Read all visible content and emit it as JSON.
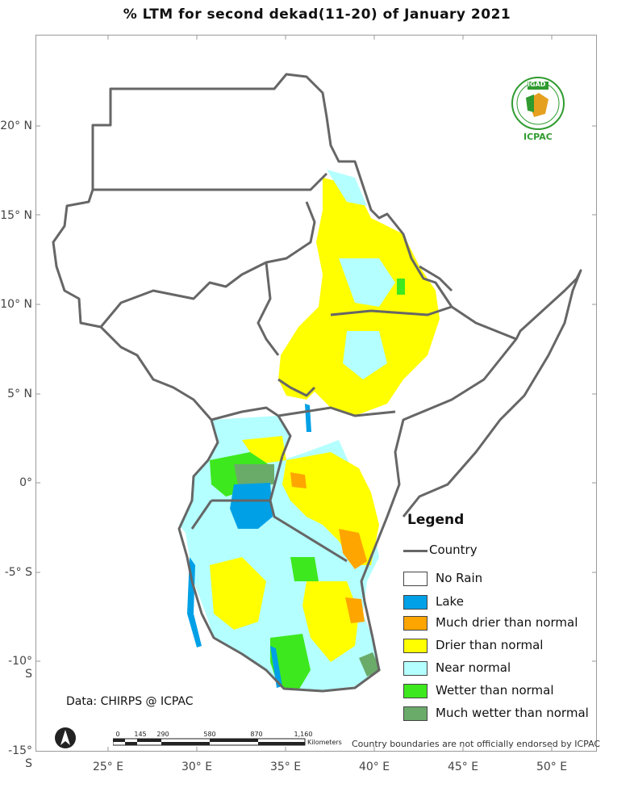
{
  "title": "% LTM for  second dekad(11-20) of January 2021",
  "lat_labels": [
    {
      "text": "20° N"
    },
    {
      "text": "15° N"
    },
    {
      "text": "10° N"
    },
    {
      "text": "5° N"
    },
    {
      "text": "0°"
    },
    {
      "text": "-5° S"
    },
    {
      "text": "-10° S"
    },
    {
      "text": "-15° S"
    }
  ],
  "lon_labels": [
    {
      "text": "25° E"
    },
    {
      "text": "30° E"
    },
    {
      "text": "35° E"
    },
    {
      "text": "40° E"
    },
    {
      "text": "45° E"
    },
    {
      "text": "50° E"
    }
  ],
  "legend": {
    "title": "Legend",
    "country_label": "Country",
    "items": [
      {
        "label": "No Rain",
        "color": "#ffffff"
      },
      {
        "label": "Lake",
        "color": "#00a0e6"
      },
      {
        "label": "Much drier than normal",
        "color": "#ffa500"
      },
      {
        "label": "Drier than normal",
        "color": "#ffff00"
      },
      {
        "label": "Near normal",
        "color": "#b4ffff"
      },
      {
        "label": "Wetter than normal",
        "color": "#3ee81e"
      },
      {
        "label": "Much wetter than normal",
        "color": "#6aab6a"
      }
    ]
  },
  "data_credit": "Data: CHIRPS @ ICPAC",
  "disclaimer": "Country boundaries are not officially endorsed by ICPAC",
  "scale_bar": {
    "ticks": [
      "0",
      "145",
      "290",
      "580",
      "870",
      "1,160"
    ],
    "unit": "Kilometers"
  },
  "logo": {
    "top_text": "IGAD",
    "bottom_text": "ICPAC"
  },
  "colors": {
    "border": "#666666",
    "frame": "#9a9a9a"
  }
}
